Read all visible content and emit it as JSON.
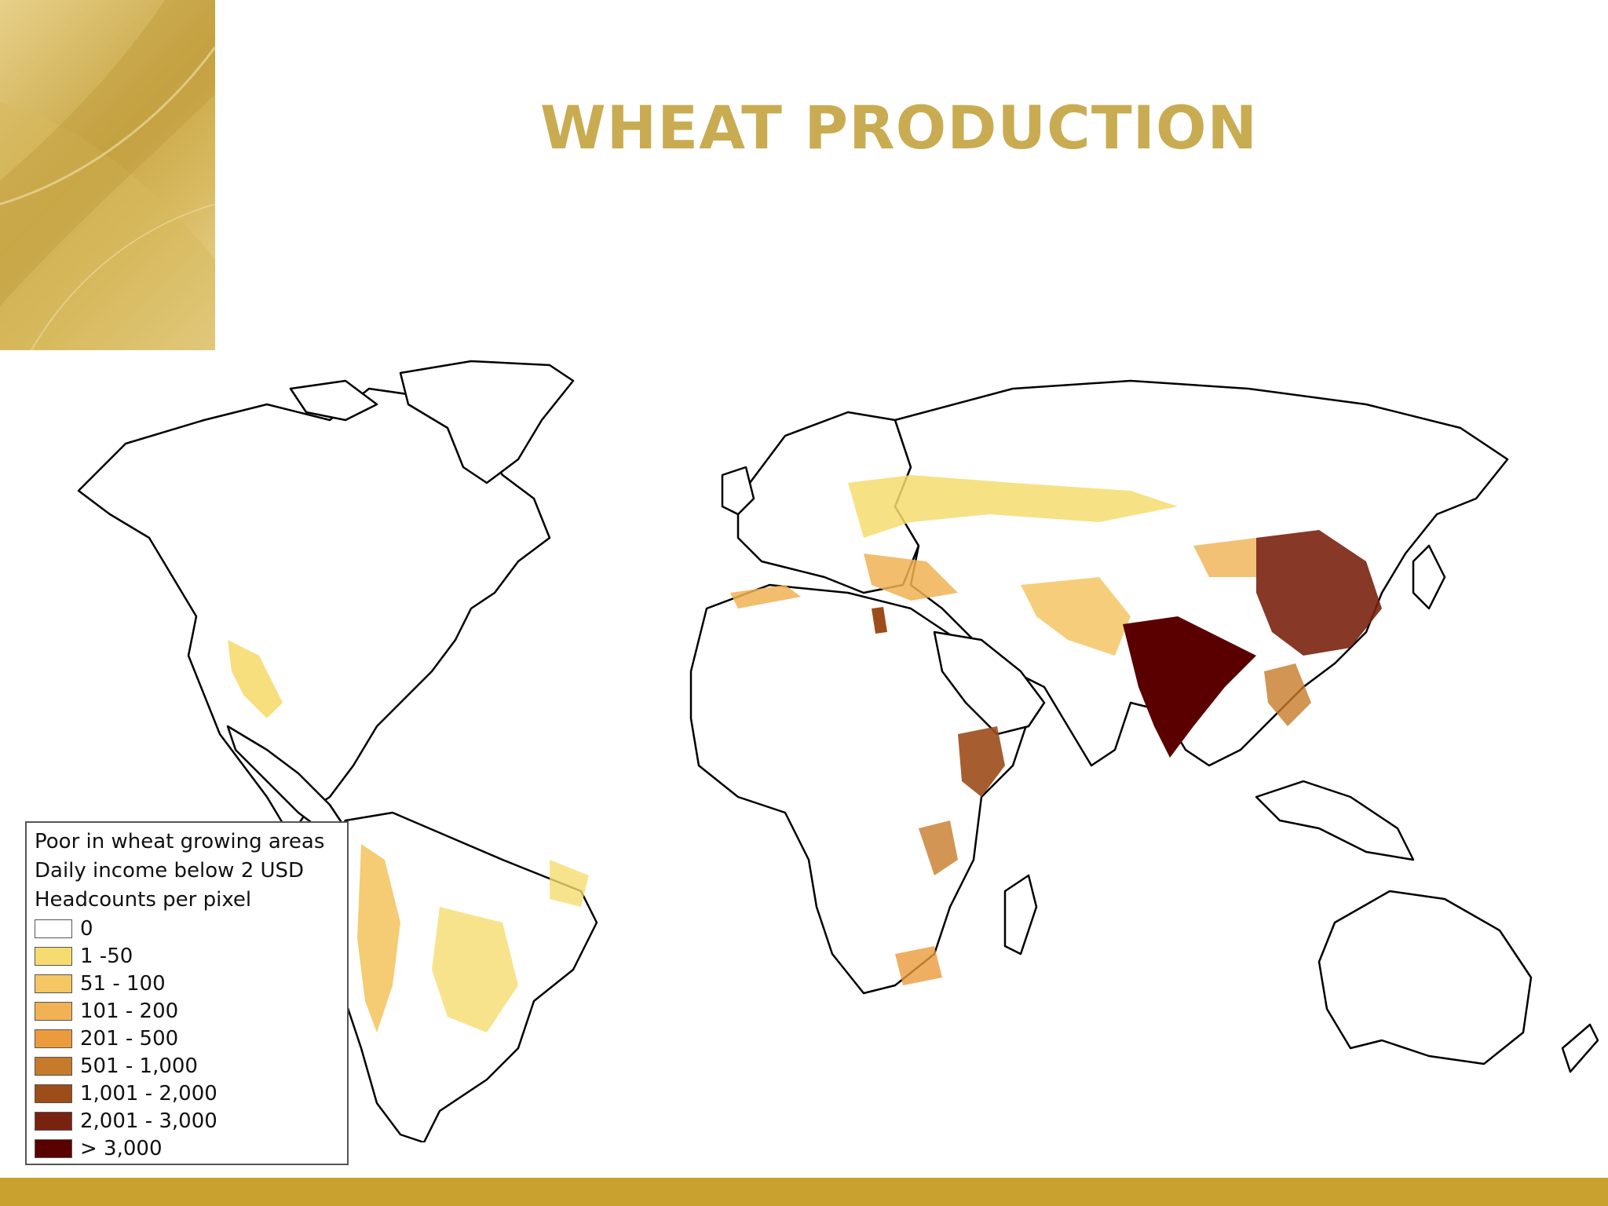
{
  "slide": {
    "title": "WHEAT PRODUCTION"
  },
  "theme": {
    "title_color": "#c9ac52",
    "accent_gold": "#c9a12e",
    "border_color": "#000000"
  },
  "legend": {
    "heading_lines": [
      "Poor in wheat growing areas",
      "Daily income below 2 USD",
      "Headcounts per pixel"
    ],
    "items": [
      {
        "label": "0",
        "color": "#ffffff"
      },
      {
        "label": "1 -50",
        "color": "#f6dc70"
      },
      {
        "label": "51 - 100",
        "color": "#f4c664"
      },
      {
        "label": "101 - 200",
        "color": "#f0b254"
      },
      {
        "label": "201 - 500",
        "color": "#eb9b3c"
      },
      {
        "label": "501 - 1,000",
        "color": "#c77a29"
      },
      {
        "label": "1,001 - 2,000",
        "color": "#9c4d1a"
      },
      {
        "label": "2,001 - 3,000",
        "color": "#7a2210"
      },
      {
        "label": "> 3,000",
        "color": "#5a0000"
      }
    ]
  }
}
